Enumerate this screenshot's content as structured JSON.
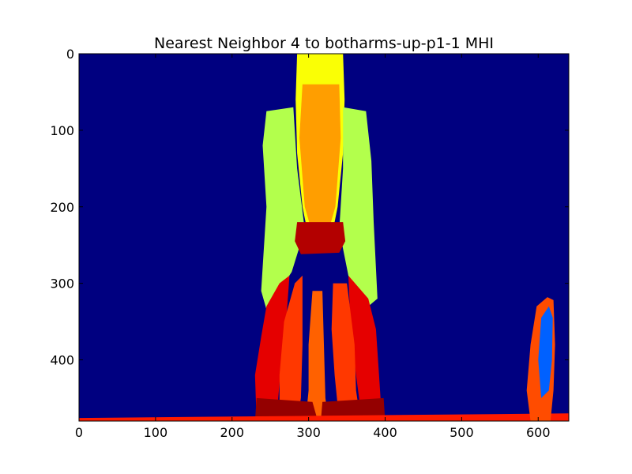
{
  "chart_data": {
    "type": "heatmap",
    "title": "Nearest Neighbor 4 to botharms-up-p1-1 MHI",
    "xlabel": "",
    "ylabel": "",
    "xlim": [
      0,
      640
    ],
    "ylim": [
      480,
      0
    ],
    "y_inverted": true,
    "x_ticks": [
      0,
      100,
      200,
      300,
      400,
      500,
      600
    ],
    "y_ticks": [
      0,
      100,
      200,
      300,
      400
    ],
    "colormap": "jet",
    "value_range": [
      0,
      1
    ],
    "grid": false,
    "legend": "none",
    "regions": [
      {
        "name": "head-column",
        "value": 0.62,
        "polygon": [
          [
            285,
            0
          ],
          [
            345,
            0
          ],
          [
            347,
            60
          ],
          [
            345,
            130
          ],
          [
            338,
            200
          ],
          [
            330,
            240
          ],
          [
            300,
            240
          ],
          [
            292,
            200
          ],
          [
            285,
            130
          ],
          [
            283,
            60
          ]
        ]
      },
      {
        "name": "head-column-inner",
        "value": 0.72,
        "polygon": [
          [
            292,
            40
          ],
          [
            340,
            40
          ],
          [
            342,
            110
          ],
          [
            335,
            200
          ],
          [
            325,
            235
          ],
          [
            305,
            235
          ],
          [
            295,
            200
          ],
          [
            288,
            110
          ]
        ]
      },
      {
        "name": "left-torso",
        "value": 0.55,
        "polygon": [
          [
            245,
            75
          ],
          [
            280,
            70
          ],
          [
            285,
            150
          ],
          [
            295,
            230
          ],
          [
            278,
            285
          ],
          [
            262,
            310
          ],
          [
            248,
            345
          ],
          [
            238,
            310
          ],
          [
            245,
            200
          ],
          [
            240,
            120
          ]
        ]
      },
      {
        "name": "right-torso",
        "value": 0.55,
        "polygon": [
          [
            345,
            70
          ],
          [
            375,
            75
          ],
          [
            382,
            140
          ],
          [
            385,
            220
          ],
          [
            390,
            320
          ],
          [
            378,
            330
          ],
          [
            352,
            290
          ],
          [
            340,
            230
          ],
          [
            345,
            150
          ]
        ]
      },
      {
        "name": "left-leg-outer",
        "value": 0.9,
        "polygon": [
          [
            245,
            330
          ],
          [
            262,
            300
          ],
          [
            275,
            290
          ],
          [
            270,
            360
          ],
          [
            262,
            430
          ],
          [
            258,
            480
          ],
          [
            232,
            480
          ],
          [
            230,
            420
          ],
          [
            238,
            370
          ]
        ]
      },
      {
        "name": "right-leg-outer",
        "value": 0.9,
        "polygon": [
          [
            352,
            290
          ],
          [
            378,
            320
          ],
          [
            388,
            360
          ],
          [
            392,
            420
          ],
          [
            396,
            480
          ],
          [
            370,
            480
          ],
          [
            362,
            420
          ],
          [
            355,
            360
          ]
        ]
      },
      {
        "name": "center-leg",
        "value": 0.78,
        "polygon": [
          [
            305,
            310
          ],
          [
            318,
            310
          ],
          [
            320,
            380
          ],
          [
            322,
            450
          ],
          [
            326,
            480
          ],
          [
            296,
            480
          ],
          [
            300,
            440
          ],
          [
            300,
            380
          ]
        ]
      },
      {
        "name": "left-leg-inner",
        "value": 0.82,
        "polygon": [
          [
            268,
            350
          ],
          [
            282,
            300
          ],
          [
            292,
            290
          ],
          [
            292,
            380
          ],
          [
            290,
            450
          ],
          [
            285,
            480
          ],
          [
            262,
            480
          ],
          [
            262,
            420
          ]
        ]
      },
      {
        "name": "right-leg-inner",
        "value": 0.82,
        "polygon": [
          [
            332,
            300
          ],
          [
            350,
            300
          ],
          [
            360,
            380
          ],
          [
            362,
            440
          ],
          [
            368,
            480
          ],
          [
            340,
            480
          ],
          [
            334,
            420
          ],
          [
            330,
            360
          ]
        ]
      },
      {
        "name": "hip-band",
        "value": 0.95,
        "polygon": [
          [
            285,
            220
          ],
          [
            345,
            220
          ],
          [
            348,
            245
          ],
          [
            340,
            260
          ],
          [
            290,
            262
          ],
          [
            282,
            245
          ]
        ]
      },
      {
        "name": "left-foot",
        "value": 0.98,
        "polygon": [
          [
            232,
            450
          ],
          [
            305,
            455
          ],
          [
            312,
            480
          ],
          [
            230,
            480
          ]
        ]
      },
      {
        "name": "right-foot",
        "value": 0.98,
        "polygon": [
          [
            318,
            455
          ],
          [
            398,
            450
          ],
          [
            400,
            480
          ],
          [
            316,
            480
          ]
        ]
      },
      {
        "name": "floor-strip",
        "value": 0.85,
        "polygon": [
          [
            0,
            476
          ],
          [
            640,
            470
          ],
          [
            640,
            480
          ],
          [
            0,
            480
          ]
        ]
      },
      {
        "name": "right-edge-blob-outer",
        "value": 0.8,
        "polygon": [
          [
            598,
            330
          ],
          [
            612,
            318
          ],
          [
            620,
            322
          ],
          [
            622,
            380
          ],
          [
            620,
            440
          ],
          [
            616,
            480
          ],
          [
            590,
            480
          ],
          [
            585,
            440
          ],
          [
            590,
            380
          ]
        ]
      },
      {
        "name": "right-edge-blob-inner",
        "value": 0.22,
        "polygon": [
          [
            604,
            345
          ],
          [
            614,
            330
          ],
          [
            619,
            345
          ],
          [
            618,
            400
          ],
          [
            614,
            440
          ],
          [
            604,
            450
          ],
          [
            600,
            400
          ]
        ]
      }
    ]
  }
}
